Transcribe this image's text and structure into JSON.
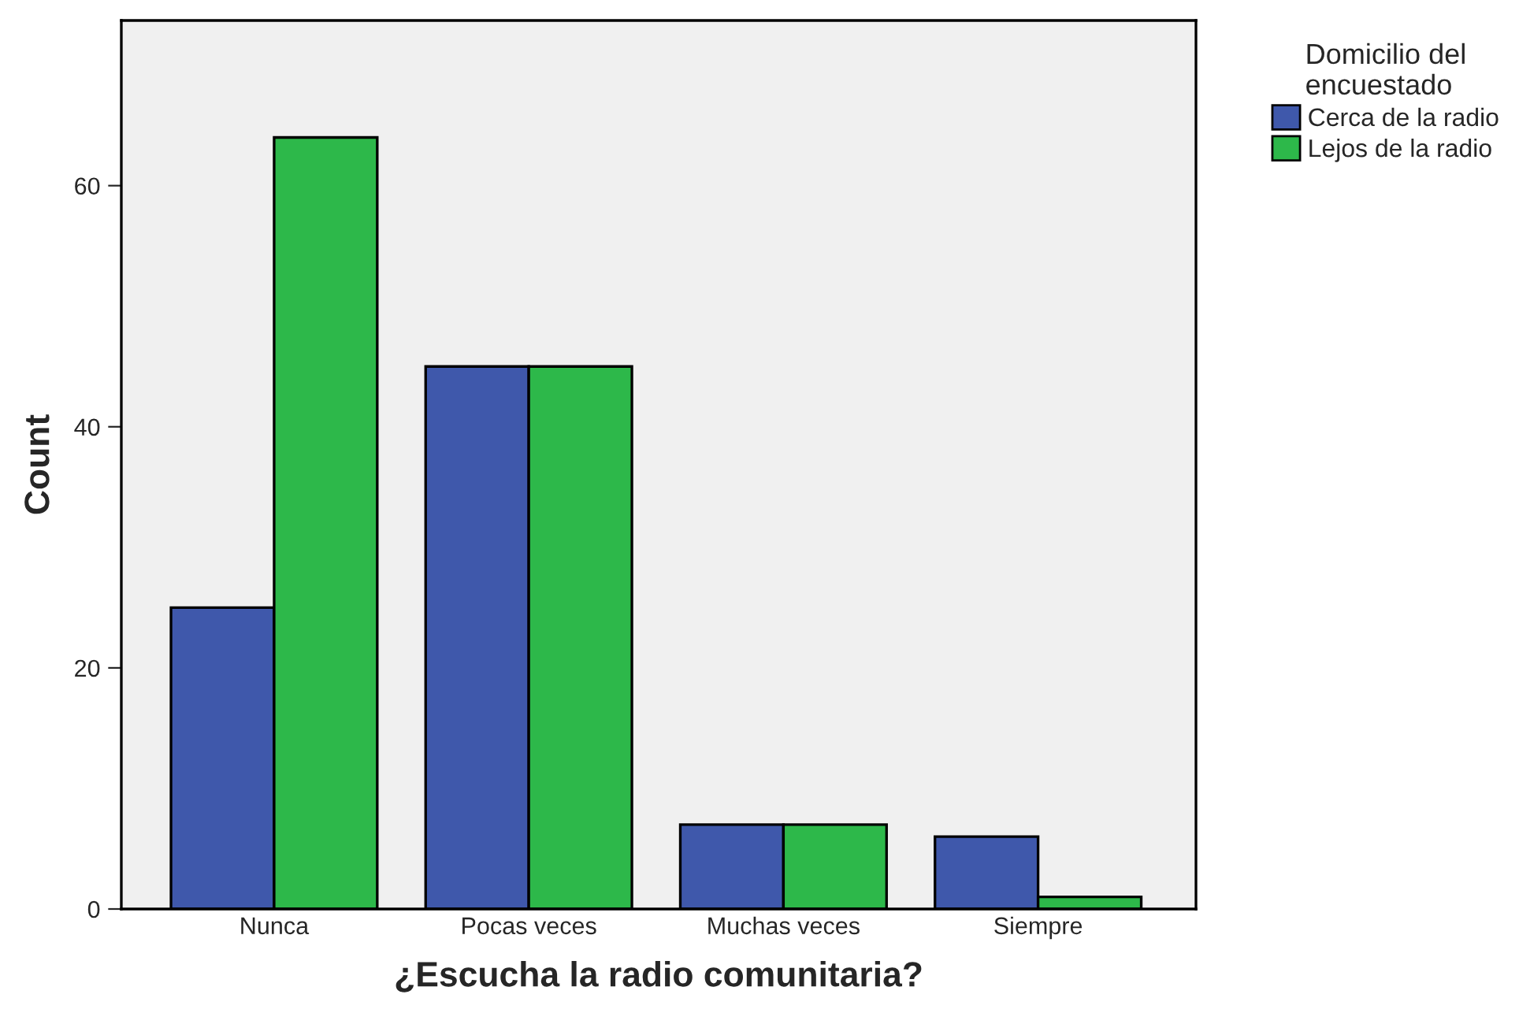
{
  "chart_data": {
    "type": "bar",
    "xlabel": "¿Escucha la radio comunitaria?",
    "ylabel": "Count",
    "legend_title": "Domicilio del\nencuestado",
    "categories": [
      "Nunca",
      "Pocas veces",
      "Muchas veces",
      "Siempre"
    ],
    "series": [
      {
        "name": "Cerca de la radio",
        "color": "#3f58ab",
        "values": [
          25,
          45,
          7,
          6
        ]
      },
      {
        "name": "Lejos de la radio",
        "color": "#2db84a",
        "values": [
          64,
          45,
          7,
          1
        ]
      }
    ],
    "ylim": [
      0,
      73.7
    ],
    "yticks": [
      0,
      20,
      40,
      60
    ],
    "grid": false,
    "legend": "top right"
  }
}
